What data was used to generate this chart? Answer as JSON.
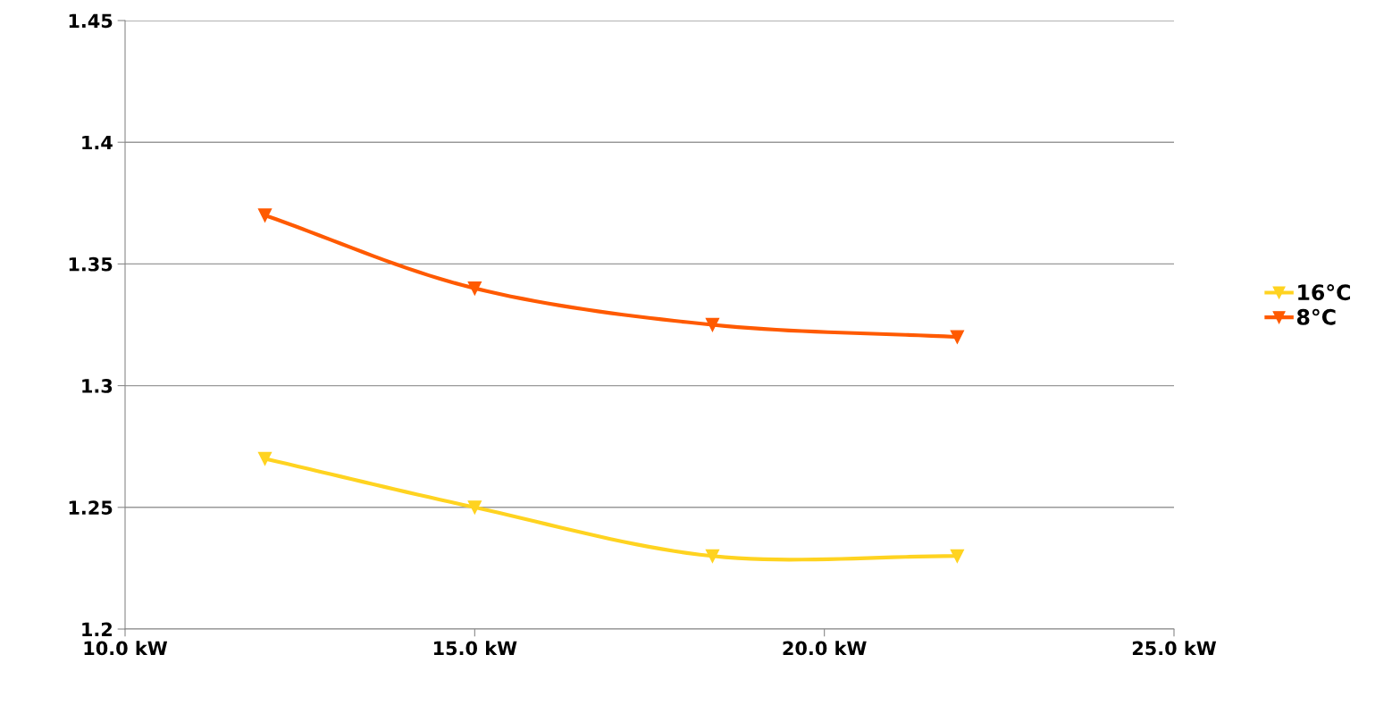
{
  "chart_data": {
    "type": "line",
    "x": [
      12.0,
      15.0,
      18.4,
      21.9
    ],
    "series": [
      {
        "name": "16°C",
        "color": "#ffd320",
        "values": [
          1.27,
          1.25,
          1.23,
          1.23
        ]
      },
      {
        "name": "8°C",
        "color": "#ff5a00",
        "values": [
          1.37,
          1.34,
          1.325,
          1.32
        ]
      }
    ],
    "xlim": [
      10,
      25
    ],
    "xticks": [
      {
        "value": 10,
        "label": "10.0 kW"
      },
      {
        "value": 15,
        "label": "15.0 kW"
      },
      {
        "value": 20,
        "label": "20.0 kW"
      },
      {
        "value": 25,
        "label": "25.0 kW"
      }
    ],
    "ylim": [
      1.2,
      1.45
    ],
    "yticks": [
      1.2,
      1.25,
      1.3,
      1.35,
      1.4,
      1.45
    ],
    "grid": "y",
    "legend": "right",
    "marker": "triangle",
    "line_style": "solid"
  }
}
